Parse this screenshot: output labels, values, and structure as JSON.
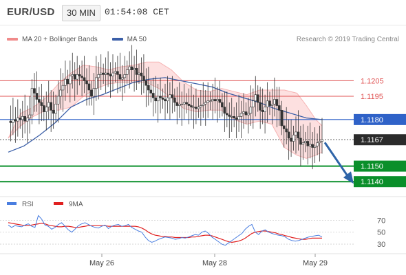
{
  "header": {
    "symbol": "EUR/USD",
    "timeframe": "30 MIN",
    "clock": "01:54:08 CET"
  },
  "legend": {
    "items": [
      {
        "label": "MA 20 + Bollinger Bands",
        "color": "#f08a8a"
      },
      {
        "label": "MA 50",
        "color": "#3b5fa8"
      }
    ],
    "credit": "Research © 2019 Trading Central"
  },
  "colors": {
    "resistance": "#e05555",
    "pivot": "#2f62c8",
    "support": "#0a8f2a",
    "bollinger_fill": "#fde0e0",
    "candle_up": "#ffffff",
    "candle_down": "#333333",
    "arrow": "#2e64a8",
    "rsi": "#4a7ee0",
    "rsi_ma": "#e02020"
  },
  "levels": [
    {
      "value": 1.1205,
      "label": "1.1205",
      "kind": "resistance"
    },
    {
      "value": 1.1195,
      "label": "1.1195",
      "kind": "resistance"
    },
    {
      "value": 1.118,
      "label": "1.1180",
      "kind": "pivot"
    },
    {
      "value": 1.1167,
      "label": "1.1167",
      "kind": "last"
    },
    {
      "value": 1.115,
      "label": "1.1150",
      "kind": "support"
    },
    {
      "value": 1.114,
      "label": "1.1140",
      "kind": "support"
    }
  ],
  "rsi_panel": {
    "legend": [
      {
        "label": "RSI",
        "color": "#4a7ee0"
      },
      {
        "label": "9MA",
        "color": "#e02020"
      }
    ],
    "ticks": [
      "70",
      "50",
      "30"
    ]
  },
  "x_labels": [
    "May 26",
    "May 28",
    "May 29"
  ],
  "chart_data": {
    "type": "candlestick",
    "title": "EUR/USD 30 MIN",
    "ylim": [
      1.1133,
      1.1226
    ],
    "x_labels": [
      "May 26",
      "May 28",
      "May 29"
    ],
    "forecast_arrow": {
      "from": 1.1167,
      "to": 1.114
    },
    "price_close_path": [
      1.1179,
      1.1178,
      1.118,
      1.1179,
      1.1181,
      1.118,
      1.1182,
      1.1179,
      1.1181,
      1.1183,
      1.12,
      1.1197,
      1.1193,
      1.1191,
      1.1189,
      1.1185,
      1.1188,
      1.1191,
      1.1186,
      1.1184,
      1.119,
      1.1195,
      1.1199,
      1.1202,
      1.1206,
      1.1203,
      1.1208,
      1.1209,
      1.1206,
      1.1209,
      1.1208,
      1.1207,
      1.1205,
      1.1203,
      1.1199,
      1.1195,
      1.12,
      1.1207,
      1.1209,
      1.121,
      1.1209,
      1.121,
      1.1209,
      1.1208,
      1.121,
      1.1211,
      1.1209,
      1.1206,
      1.1207,
      1.1209,
      1.1212,
      1.1214,
      1.1212,
      1.1213,
      1.1209,
      1.121,
      1.1208,
      1.1205,
      1.1202,
      1.1199,
      1.1197,
      1.1194,
      1.1192,
      1.1195,
      1.1194,
      1.1193,
      1.1192,
      1.1194,
      1.1196,
      1.1194,
      1.1191,
      1.1189,
      1.119,
      1.119,
      1.1191,
      1.119,
      1.1189,
      1.1188,
      1.1188,
      1.1187,
      1.1188,
      1.1189,
      1.119,
      1.1191,
      1.1192,
      1.1192,
      1.1193,
      1.1192,
      1.1193,
      1.1191,
      1.1188,
      1.1184,
      1.1183,
      1.1182,
      1.1182,
      1.1181,
      1.118,
      1.1182,
      1.1184,
      1.1185,
      1.1183,
      1.1184,
      1.1188,
      1.1192,
      1.1196,
      1.1191,
      1.1186,
      1.1185,
      1.1188,
      1.1192,
      1.1189,
      1.119,
      1.1193,
      1.1189,
      1.1186,
      1.1176,
      1.1174,
      1.1172,
      1.1168,
      1.1166,
      1.117,
      1.1172,
      1.1168,
      1.1164,
      1.1165,
      1.1166,
      1.1163,
      1.1164,
      1.1162,
      1.1163,
      1.1165,
      1.1166,
      1.1167
    ],
    "ma50_path": [
      [
        0,
        1.1159
      ],
      [
        0.05,
        1.1163
      ],
      [
        0.1,
        1.117
      ],
      [
        0.15,
        1.1178
      ],
      [
        0.2,
        1.1188
      ],
      [
        0.25,
        1.1193
      ],
      [
        0.3,
        1.1196
      ],
      [
        0.35,
        1.12
      ],
      [
        0.4,
        1.1204
      ],
      [
        0.45,
        1.1206
      ],
      [
        0.5,
        1.1207
      ],
      [
        0.55,
        1.1205
      ],
      [
        0.6,
        1.1203
      ],
      [
        0.65,
        1.1201
      ],
      [
        0.7,
        1.1197
      ],
      [
        0.75,
        1.1194
      ],
      [
        0.8,
        1.1191
      ],
      [
        0.85,
        1.1187
      ],
      [
        0.9,
        1.1184
      ],
      [
        0.95,
        1.1181
      ],
      [
        1.0,
        1.118
      ]
    ],
    "bb_upper_path": [
      [
        0,
        1.1168
      ],
      [
        0.04,
        1.1184
      ],
      [
        0.08,
        1.1188
      ],
      [
        0.12,
        1.1194
      ],
      [
        0.16,
        1.1203
      ],
      [
        0.2,
        1.121
      ],
      [
        0.24,
        1.1215
      ],
      [
        0.28,
        1.1214
      ],
      [
        0.32,
        1.1212
      ],
      [
        0.36,
        1.1214
      ],
      [
        0.4,
        1.1215
      ],
      [
        0.44,
        1.1217
      ],
      [
        0.48,
        1.1217
      ],
      [
        0.52,
        1.1212
      ],
      [
        0.56,
        1.1204
      ],
      [
        0.6,
        1.1199
      ],
      [
        0.64,
        1.1198
      ],
      [
        0.68,
        1.12
      ],
      [
        0.72,
        1.1198
      ],
      [
        0.76,
        1.1196
      ],
      [
        0.8,
        1.1199
      ],
      [
        0.84,
        1.1199
      ],
      [
        0.88,
        1.1199
      ],
      [
        0.92,
        1.1197
      ],
      [
        0.95,
        1.1189
      ],
      [
        0.98,
        1.118
      ],
      [
        1.0,
        1.1176
      ]
    ],
    "bb_lower_path": [
      [
        0,
        1.1168
      ],
      [
        0.04,
        1.1176
      ],
      [
        0.08,
        1.1182
      ],
      [
        0.12,
        1.1186
      ],
      [
        0.16,
        1.1186
      ],
      [
        0.2,
        1.1188
      ],
      [
        0.24,
        1.1195
      ],
      [
        0.28,
        1.12
      ],
      [
        0.32,
        1.1203
      ],
      [
        0.36,
        1.1204
      ],
      [
        0.4,
        1.1204
      ],
      [
        0.44,
        1.1204
      ],
      [
        0.48,
        1.12
      ],
      [
        0.52,
        1.1194
      ],
      [
        0.56,
        1.1187
      ],
      [
        0.6,
        1.1185
      ],
      [
        0.64,
        1.1186
      ],
      [
        0.68,
        1.1186
      ],
      [
        0.72,
        1.118
      ],
      [
        0.76,
        1.1177
      ],
      [
        0.8,
        1.1179
      ],
      [
        0.84,
        1.1177
      ],
      [
        0.88,
        1.1162
      ],
      [
        0.92,
        1.1157
      ],
      [
        0.95,
        1.1155
      ],
      [
        0.98,
        1.1157
      ],
      [
        1.0,
        1.1159
      ]
    ],
    "rsi": {
      "ticks": [
        70,
        50,
        30
      ],
      "rsi_path": [
        62,
        58,
        61,
        60,
        59,
        62,
        64,
        60,
        58,
        78,
        72,
        62,
        60,
        55,
        58,
        63,
        66,
        60,
        54,
        50,
        55,
        61,
        64,
        66,
        63,
        60,
        58,
        57,
        60,
        62,
        56,
        60,
        62,
        63,
        60,
        61,
        63,
        58,
        55,
        52,
        50,
        42,
        36,
        33,
        35,
        38,
        40,
        42,
        41,
        40,
        38,
        39,
        41,
        40,
        42,
        44,
        46,
        45,
        50,
        52,
        48,
        42,
        38,
        34,
        30,
        28,
        32,
        36,
        40,
        44,
        48,
        55,
        60,
        63,
        50,
        46,
        52,
        54,
        50,
        48,
        46,
        45,
        44,
        42,
        38,
        36,
        35,
        36,
        38,
        40,
        42,
        43,
        44,
        45,
        42
      ],
      "ma_path": [
        66,
        65,
        64,
        63,
        62,
        61,
        61,
        62,
        63,
        64,
        65,
        64,
        62,
        61,
        60,
        59,
        59,
        60,
        60,
        59,
        58,
        58,
        59,
        60,
        61,
        61,
        61,
        61,
        61,
        61,
        60,
        60,
        60,
        60,
        60,
        60,
        60,
        60,
        60,
        59,
        57,
        54,
        50,
        47,
        45,
        44,
        43,
        43,
        42,
        42,
        41,
        41,
        41,
        41,
        41,
        42,
        42,
        43,
        44,
        45,
        45,
        44,
        42,
        40,
        38,
        36,
        34,
        33,
        34,
        35,
        37,
        40,
        44,
        48,
        50,
        51,
        52,
        52,
        51,
        50,
        49,
        47,
        46,
        44,
        43,
        41,
        40,
        39,
        38,
        38,
        39,
        40,
        40,
        40,
        40
      ]
    }
  }
}
